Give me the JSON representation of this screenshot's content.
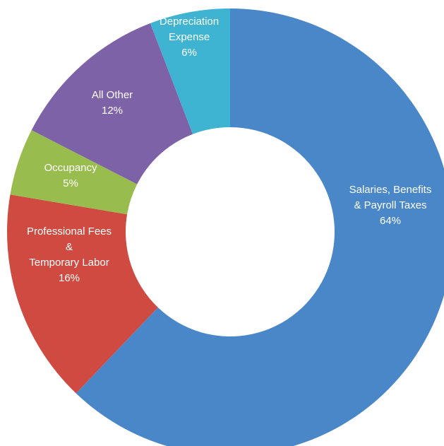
{
  "chart_data": {
    "type": "pie",
    "variant": "donut",
    "title": "",
    "slices": [
      {
        "key": "salaries",
        "lines": [
          "Salaries, Benefits",
          "& Payroll Taxes"
        ],
        "value": 64,
        "value_label": "64%",
        "color": "#4a87c9"
      },
      {
        "key": "professional",
        "lines": [
          "Professional Fees",
          "&",
          "Temporary Labor"
        ],
        "value": 16,
        "value_label": "16%",
        "color": "#cf4a41"
      },
      {
        "key": "occupancy",
        "lines": [
          "Occupancy"
        ],
        "value": 5,
        "value_label": "5%",
        "color": "#99bc4e"
      },
      {
        "key": "all-other",
        "lines": [
          "All Other"
        ],
        "value": 12,
        "value_label": "12%",
        "color": "#7e62a8"
      },
      {
        "key": "depreciation",
        "lines": [
          "Depreciation",
          "Expense"
        ],
        "value": 6,
        "value_label": "6%",
        "color": "#3fb4d2"
      }
    ]
  }
}
